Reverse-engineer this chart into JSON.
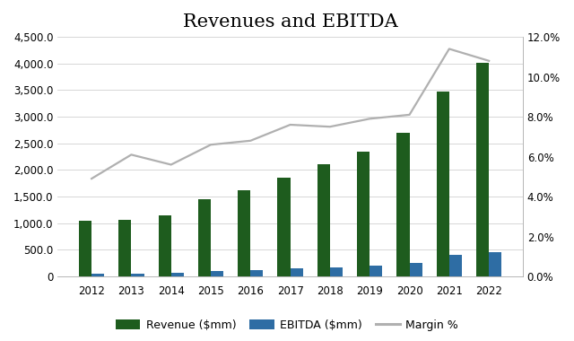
{
  "title": "Revenues and EBITDA",
  "years": [
    2012,
    2013,
    2014,
    2015,
    2016,
    2017,
    2018,
    2019,
    2020,
    2021,
    2022
  ],
  "revenue": [
    1050,
    1070,
    1150,
    1450,
    1620,
    1850,
    2100,
    2350,
    2700,
    3470,
    4020
  ],
  "ebitda": [
    55,
    60,
    65,
    100,
    115,
    145,
    165,
    200,
    250,
    400,
    450
  ],
  "margin": [
    0.049,
    0.061,
    0.056,
    0.066,
    0.068,
    0.076,
    0.075,
    0.079,
    0.081,
    0.114,
    0.108
  ],
  "revenue_color": "#1e5c1e",
  "ebitda_color": "#2e6da4",
  "margin_color": "#b0b0b0",
  "background_color": "#ffffff",
  "ylim_left": [
    0,
    4500
  ],
  "ylim_right": [
    0,
    0.12
  ],
  "yticks_left": [
    0,
    500,
    1000,
    1500,
    2000,
    2500,
    3000,
    3500,
    4000,
    4500
  ],
  "yticks_right": [
    0.0,
    0.02,
    0.04,
    0.06,
    0.08,
    0.1,
    0.12
  ],
  "legend_labels": [
    "Revenue ($mm)",
    "EBITDA ($mm)",
    "Margin %"
  ],
  "bar_width": 0.32,
  "title_fontsize": 15,
  "tick_fontsize": 8.5,
  "legend_fontsize": 9
}
